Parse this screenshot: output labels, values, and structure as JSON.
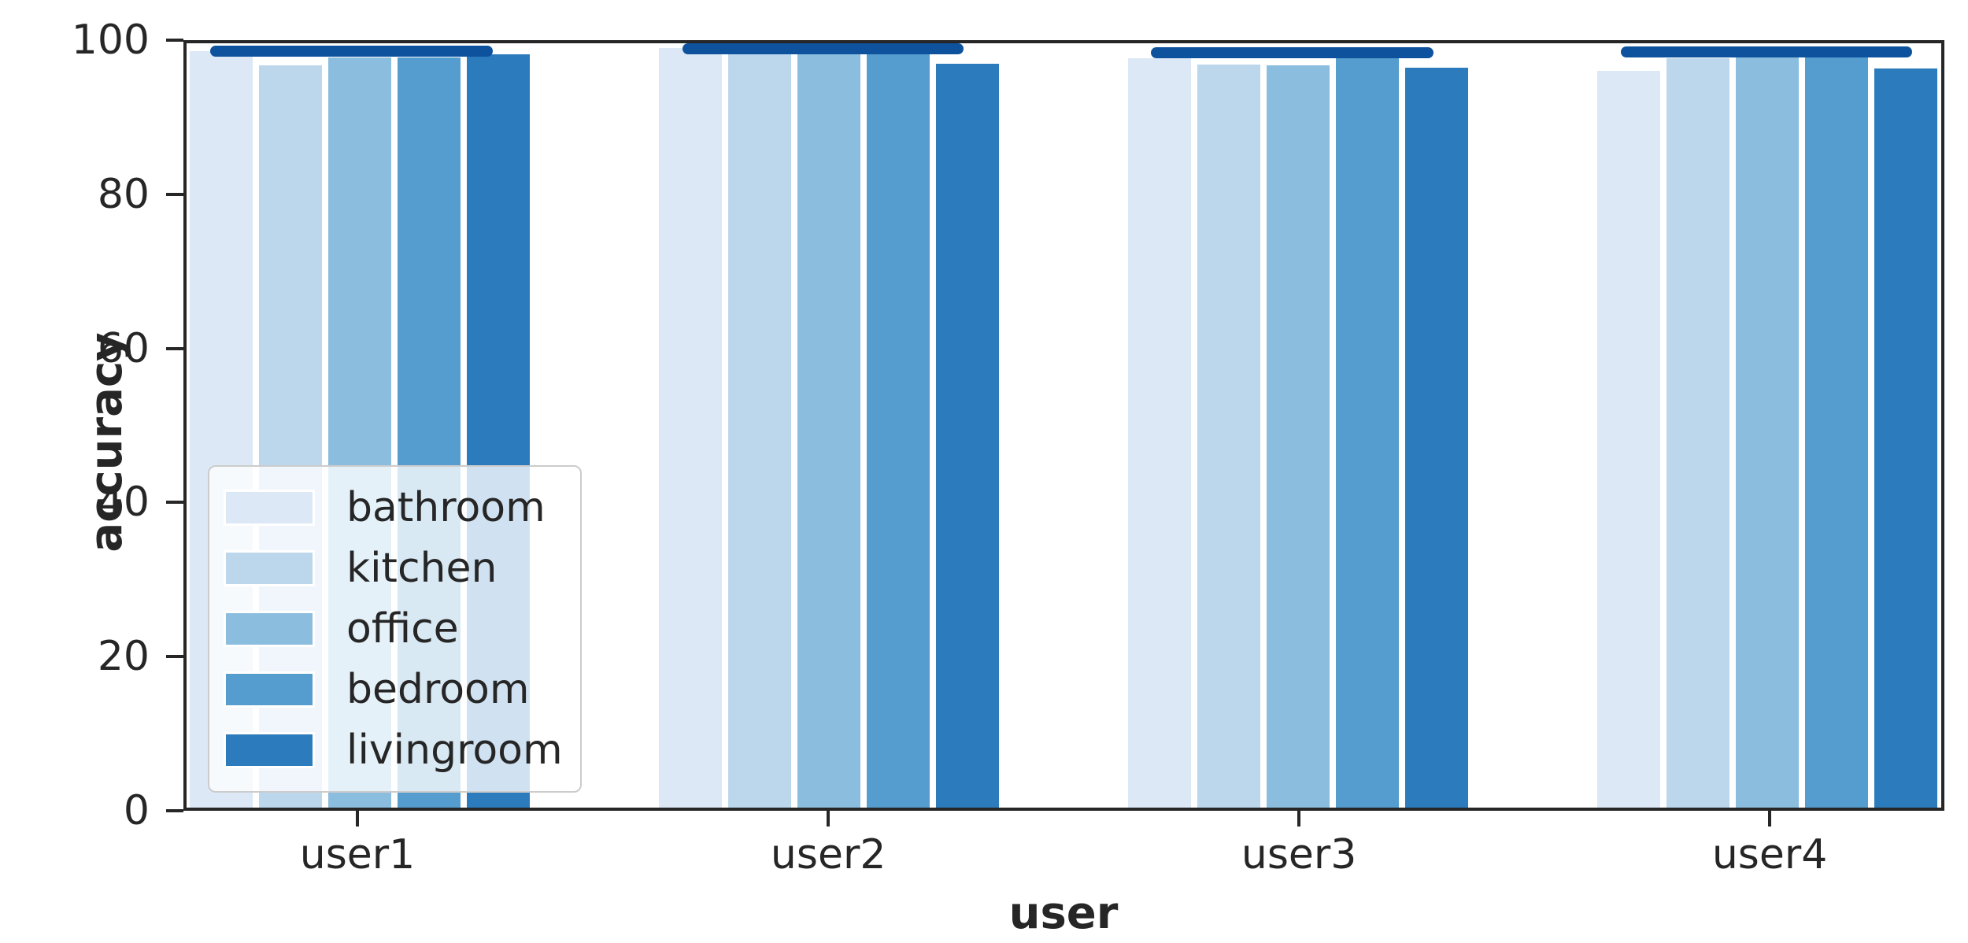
{
  "figure": {
    "background_color": "#ffffff",
    "spine_color": "#262626",
    "text_color": "#262626"
  },
  "chart_data": {
    "type": "bar",
    "title": "",
    "xlabel": "user",
    "ylabel": "accuracy",
    "ylim": [
      0,
      100
    ],
    "yticks": [
      0,
      20,
      40,
      60,
      80,
      100
    ],
    "grid": false,
    "legend_position": "inside lower-left",
    "categories": [
      "user1",
      "user2",
      "user3",
      "user4"
    ],
    "series": [
      {
        "name": "bathroom",
        "color": "#dce8f5",
        "values": [
          99.2,
          99.6,
          98.2,
          96.6
        ]
      },
      {
        "name": "kitchen",
        "color": "#bcd7ec",
        "values": [
          97.3,
          98.9,
          97.4,
          98.2
        ]
      },
      {
        "name": "office",
        "color": "#8bbddf",
        "values": [
          98.4,
          98.9,
          97.3,
          99.8
        ]
      },
      {
        "name": "bedroom",
        "color": "#549dce",
        "values": [
          98.4,
          98.9,
          99.5,
          99.6
        ]
      },
      {
        "name": "livingroom",
        "color": "#2b7bbd",
        "values": [
          98.8,
          97.5,
          97.0,
          96.9
        ]
      }
    ],
    "overlay_segments": {
      "description": "thick rounded horizontal marker near the top of each user group",
      "color": "#0e529e",
      "values": [
        99.0,
        99.3,
        98.8,
        98.9
      ],
      "x_span_frac": [
        [
          0.0134,
          0.1743
        ],
        [
          0.2825,
          0.4426
        ],
        [
          0.5494,
          0.7108
        ],
        [
          0.8176,
          0.9835
        ]
      ]
    }
  }
}
